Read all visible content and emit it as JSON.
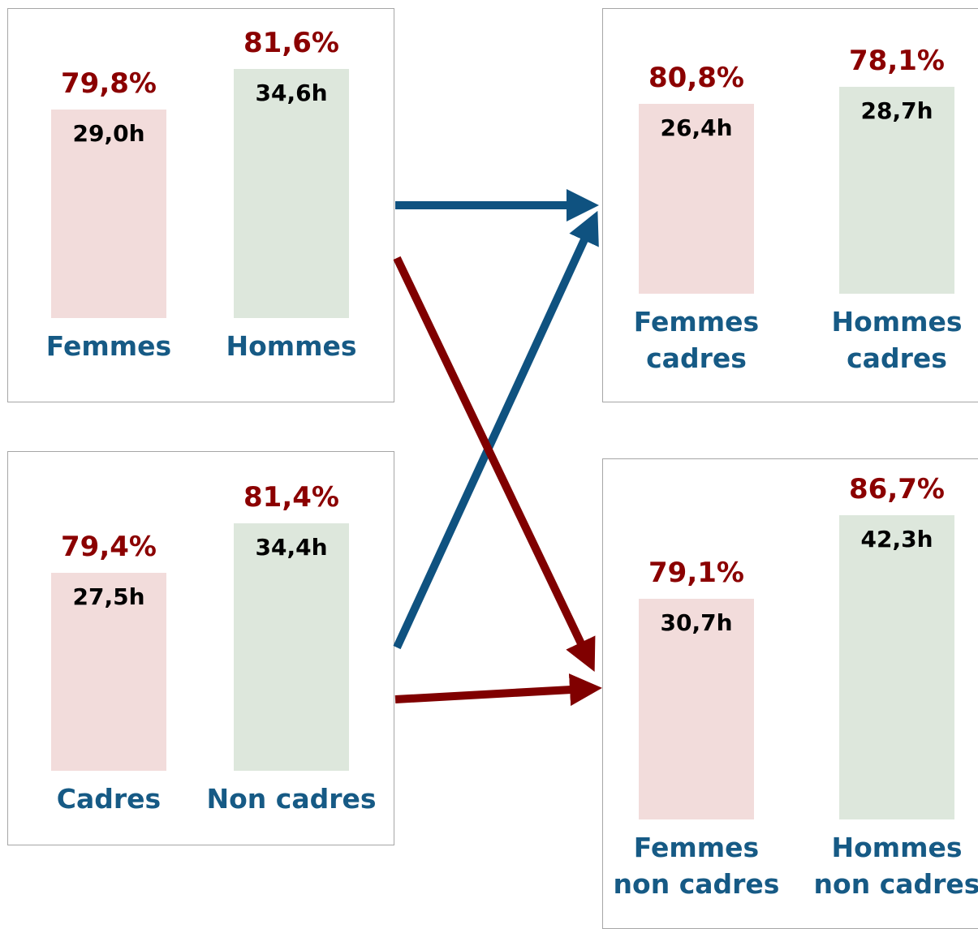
{
  "chart_data": [
    {
      "type": "bar",
      "categories": [
        "Femmes",
        "Hommes"
      ],
      "values": [
        29.0,
        34.6
      ],
      "value_labels": [
        "29,0h",
        "34,6h"
      ],
      "rates": [
        79.8,
        81.6
      ],
      "rate_labels": [
        "79,8%",
        "81,6%"
      ],
      "colors": [
        "#f2dcdb",
        "#dde7dc"
      ]
    },
    {
      "type": "bar",
      "categories": [
        "Femmes\ncadres",
        "Hommes\ncadres"
      ],
      "values": [
        26.4,
        28.7
      ],
      "value_labels": [
        "26,4h",
        "28,7h"
      ],
      "rates": [
        80.8,
        78.1
      ],
      "rate_labels": [
        "80,8%",
        "78,1%"
      ],
      "colors": [
        "#f2dcdb",
        "#dde7dc"
      ]
    },
    {
      "type": "bar",
      "categories": [
        "Cadres",
        "Non cadres"
      ],
      "values": [
        27.5,
        34.4
      ],
      "value_labels": [
        "27,5h",
        "34,4h"
      ],
      "rates": [
        79.4,
        81.4
      ],
      "rate_labels": [
        "79,4%",
        "81,4%"
      ],
      "colors": [
        "#f2dcdb",
        "#dde7dc"
      ]
    },
    {
      "type": "bar",
      "categories": [
        "Femmes\nnon cadres",
        "Hommes\nnon cadres"
      ],
      "values": [
        30.7,
        42.3
      ],
      "value_labels": [
        "30,7h",
        "42,3h"
      ],
      "rates": [
        79.1,
        86.7
      ],
      "rate_labels": [
        "79,1%",
        "86,7%"
      ],
      "colors": [
        "#f2dcdb",
        "#dde7dc"
      ]
    }
  ]
}
